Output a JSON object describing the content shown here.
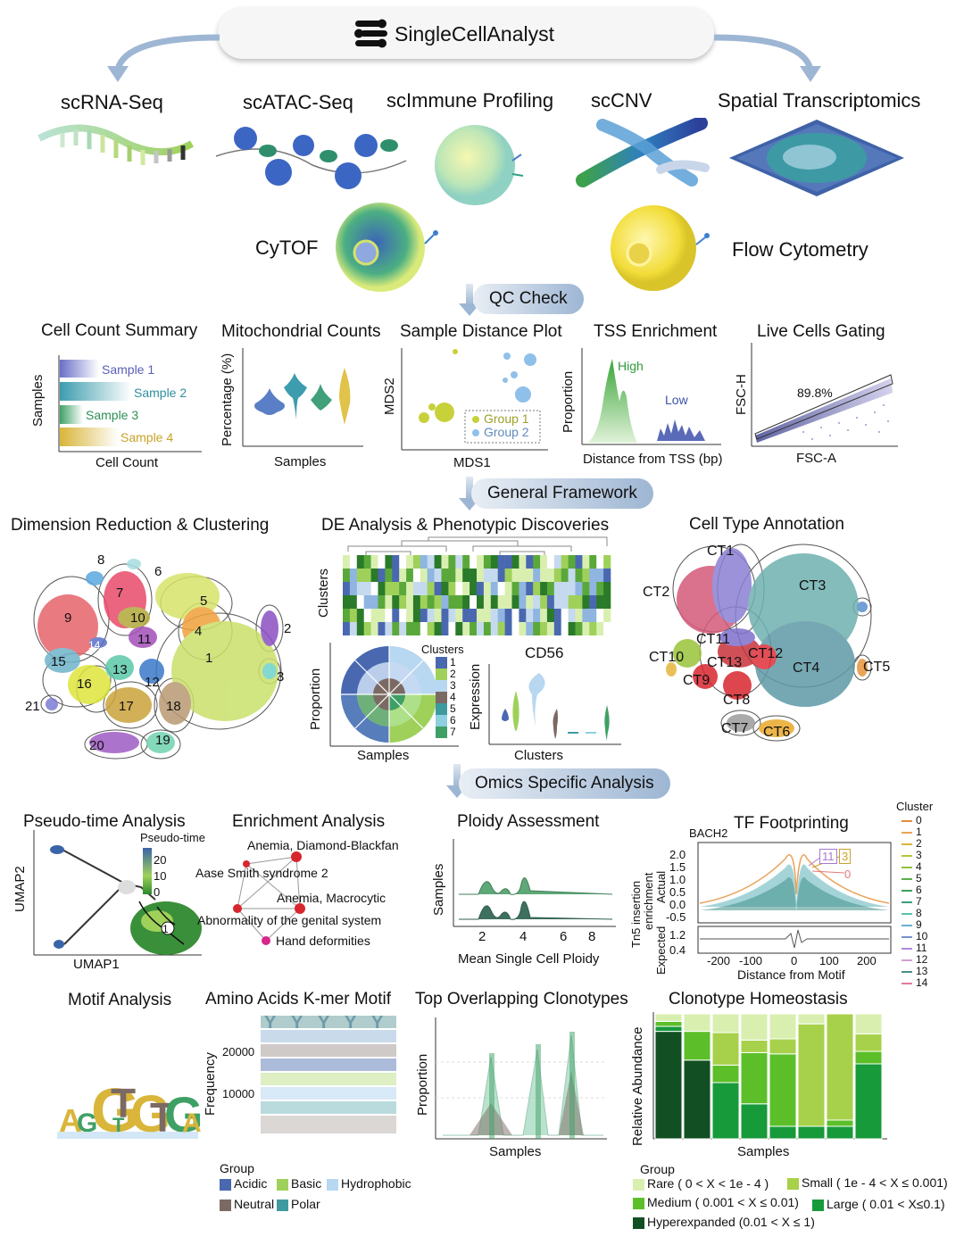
{
  "header": {
    "title": "SingleCellAnalyst"
  },
  "modalities": {
    "scrna": "scRNA-Seq",
    "scatac": "scATAC-Seq",
    "scimmune": "scImmune Profiling",
    "sccnv": "scCNV",
    "spatial": "Spatial Transcriptomics",
    "cytof": "CyTOF",
    "flow": "Flow Cytometry"
  },
  "banners": {
    "qc": "QC Check",
    "general": "General Framework",
    "omics": "Omics Specific Analysis"
  },
  "qc": {
    "cell_count": {
      "title": "Cell Count Summary",
      "ylabel": "Samples",
      "xlabel": "Cell Count",
      "samples": [
        "Sample 1",
        "Sample 2",
        "Sample 3",
        "Sample 4"
      ],
      "colors": [
        "#6a6fc7",
        "#3d9cae",
        "#3fa066",
        "#d9b53a"
      ]
    },
    "mito": {
      "title": "Mitochondrial Counts",
      "ylabel": "Percentage (%)",
      "xlabel": "Samples"
    },
    "mds": {
      "title": "Sample Distance Plot",
      "ylabel": "MDS2",
      "xlabel": "MDS1",
      "legend": [
        "Group 1",
        "Group 2"
      ]
    },
    "tss": {
      "title": "TSS Enrichment",
      "ylabel": "Proportion",
      "xlabel": "Distance from TSS (bp)",
      "high": "High",
      "low": "Low"
    },
    "live": {
      "title": "Live Cells Gating",
      "ylabel": "FSC-H",
      "xlabel": "FSC-A",
      "pct": "89.8%"
    }
  },
  "framework": {
    "dimred": {
      "title": "Dimension Reduction & Clustering",
      "clusters": [
        "1",
        "2",
        "3",
        "4",
        "5",
        "6",
        "7",
        "8",
        "9",
        "10",
        "11",
        "12",
        "13",
        "14",
        "15",
        "16",
        "17",
        "18",
        "19",
        "20",
        "21"
      ]
    },
    "de": {
      "title": "DE Analysis & Phenotypic Discoveries",
      "ylabel": "Clusters"
    },
    "prop": {
      "ylabel": "Proportion",
      "xlabel": "Samples",
      "legend_title": "Clusters",
      "legend": [
        "1",
        "2",
        "3",
        "4",
        "5",
        "6",
        "7"
      ]
    },
    "cd56": {
      "title": "CD56",
      "ylabel": "Expression",
      "xlabel": "Clusters"
    },
    "celltype": {
      "title": "Cell Type Annotation",
      "labels": [
        "CT1",
        "CT2",
        "CT3",
        "CT4",
        "CT5",
        "CT6",
        "CT7",
        "CT8",
        "CT9",
        "CT10",
        "CT11",
        "CT12",
        "CT13"
      ]
    }
  },
  "omics": {
    "pseudo": {
      "title": "Pseudo-time Analysis",
      "legend_title": "Pseudo-time",
      "ticks": [
        "20",
        "10",
        "0"
      ],
      "xlabel": "UMAP1",
      "ylabel": "UMAP2",
      "node": "1"
    },
    "enrich": {
      "title": "Enrichment Analysis",
      "terms": [
        "Anemia, Diamond-Blackfan",
        "Aase Smith syndrome 2",
        "Anemia, Macrocytic",
        "Abnormality of the genital system",
        "Hand deformities"
      ]
    },
    "ploidy": {
      "title": "Ploidy Assessment",
      "ylabel": "Samples",
      "xlabel": "Mean Single Cell Ploidy",
      "ticks": [
        "2",
        "4",
        "6",
        "8"
      ]
    },
    "tf": {
      "title": "TF Footprinting",
      "motif": "BACH2",
      "legend_title": "Cluster",
      "clusters": [
        "0",
        "1",
        "2",
        "3",
        "4",
        "5",
        "6",
        "7",
        "8",
        "9",
        "10",
        "11",
        "12",
        "13",
        "14"
      ],
      "ylabel1": "Tn5 insertion",
      "ylabel2": "enrichment",
      "ylabel3": "Expected",
      "ylabel4": "Actual",
      "yticks_top": [
        "2.0",
        "1.5",
        "1.0",
        "0.5",
        "0.0",
        "-0.5"
      ],
      "yticks_bot": [
        "1.2",
        "0.4"
      ],
      "xticks": [
        "-200",
        "-100",
        "0",
        "100",
        "200"
      ],
      "xlabel": "Distance from Motif",
      "callouts": [
        "11",
        "3",
        "0"
      ]
    },
    "motif": {
      "title": "Motif Analysis"
    },
    "kmer": {
      "title": "Amino Acids K-mer Motif",
      "ylabel": "Frequency",
      "yticks": [
        "20000",
        "10000"
      ],
      "legend_title": "Group",
      "groups": [
        "Acidic",
        "Basic",
        "Hydrophobic",
        "Neutral",
        "Polar"
      ]
    },
    "overlap": {
      "title": "Top Overlapping Clonotypes",
      "ylabel": "Proportion",
      "xlabel": "Samples"
    },
    "homeo": {
      "title": "Clonotype Homeostasis",
      "ylabel": "Relative Abundance",
      "xlabel": "Samples",
      "legend_title": "Group",
      "groups": [
        "Rare ( 0 < X < 1e - 4 )",
        "Small ( 1e - 4 < X ≤ 0.001)",
        "Medium ( 0.001 < X ≤ 0.01)",
        "Large ( 0.01 < X≤0.1)",
        "Hyperexpanded (0.01 < X ≤ 1)"
      ]
    }
  },
  "colors": {
    "banner": "#9db6d3",
    "green_dark": "#1e5b2a",
    "green_light": "#9fd15a",
    "blue": "#5a6fb5",
    "teal": "#4c9aa0"
  }
}
